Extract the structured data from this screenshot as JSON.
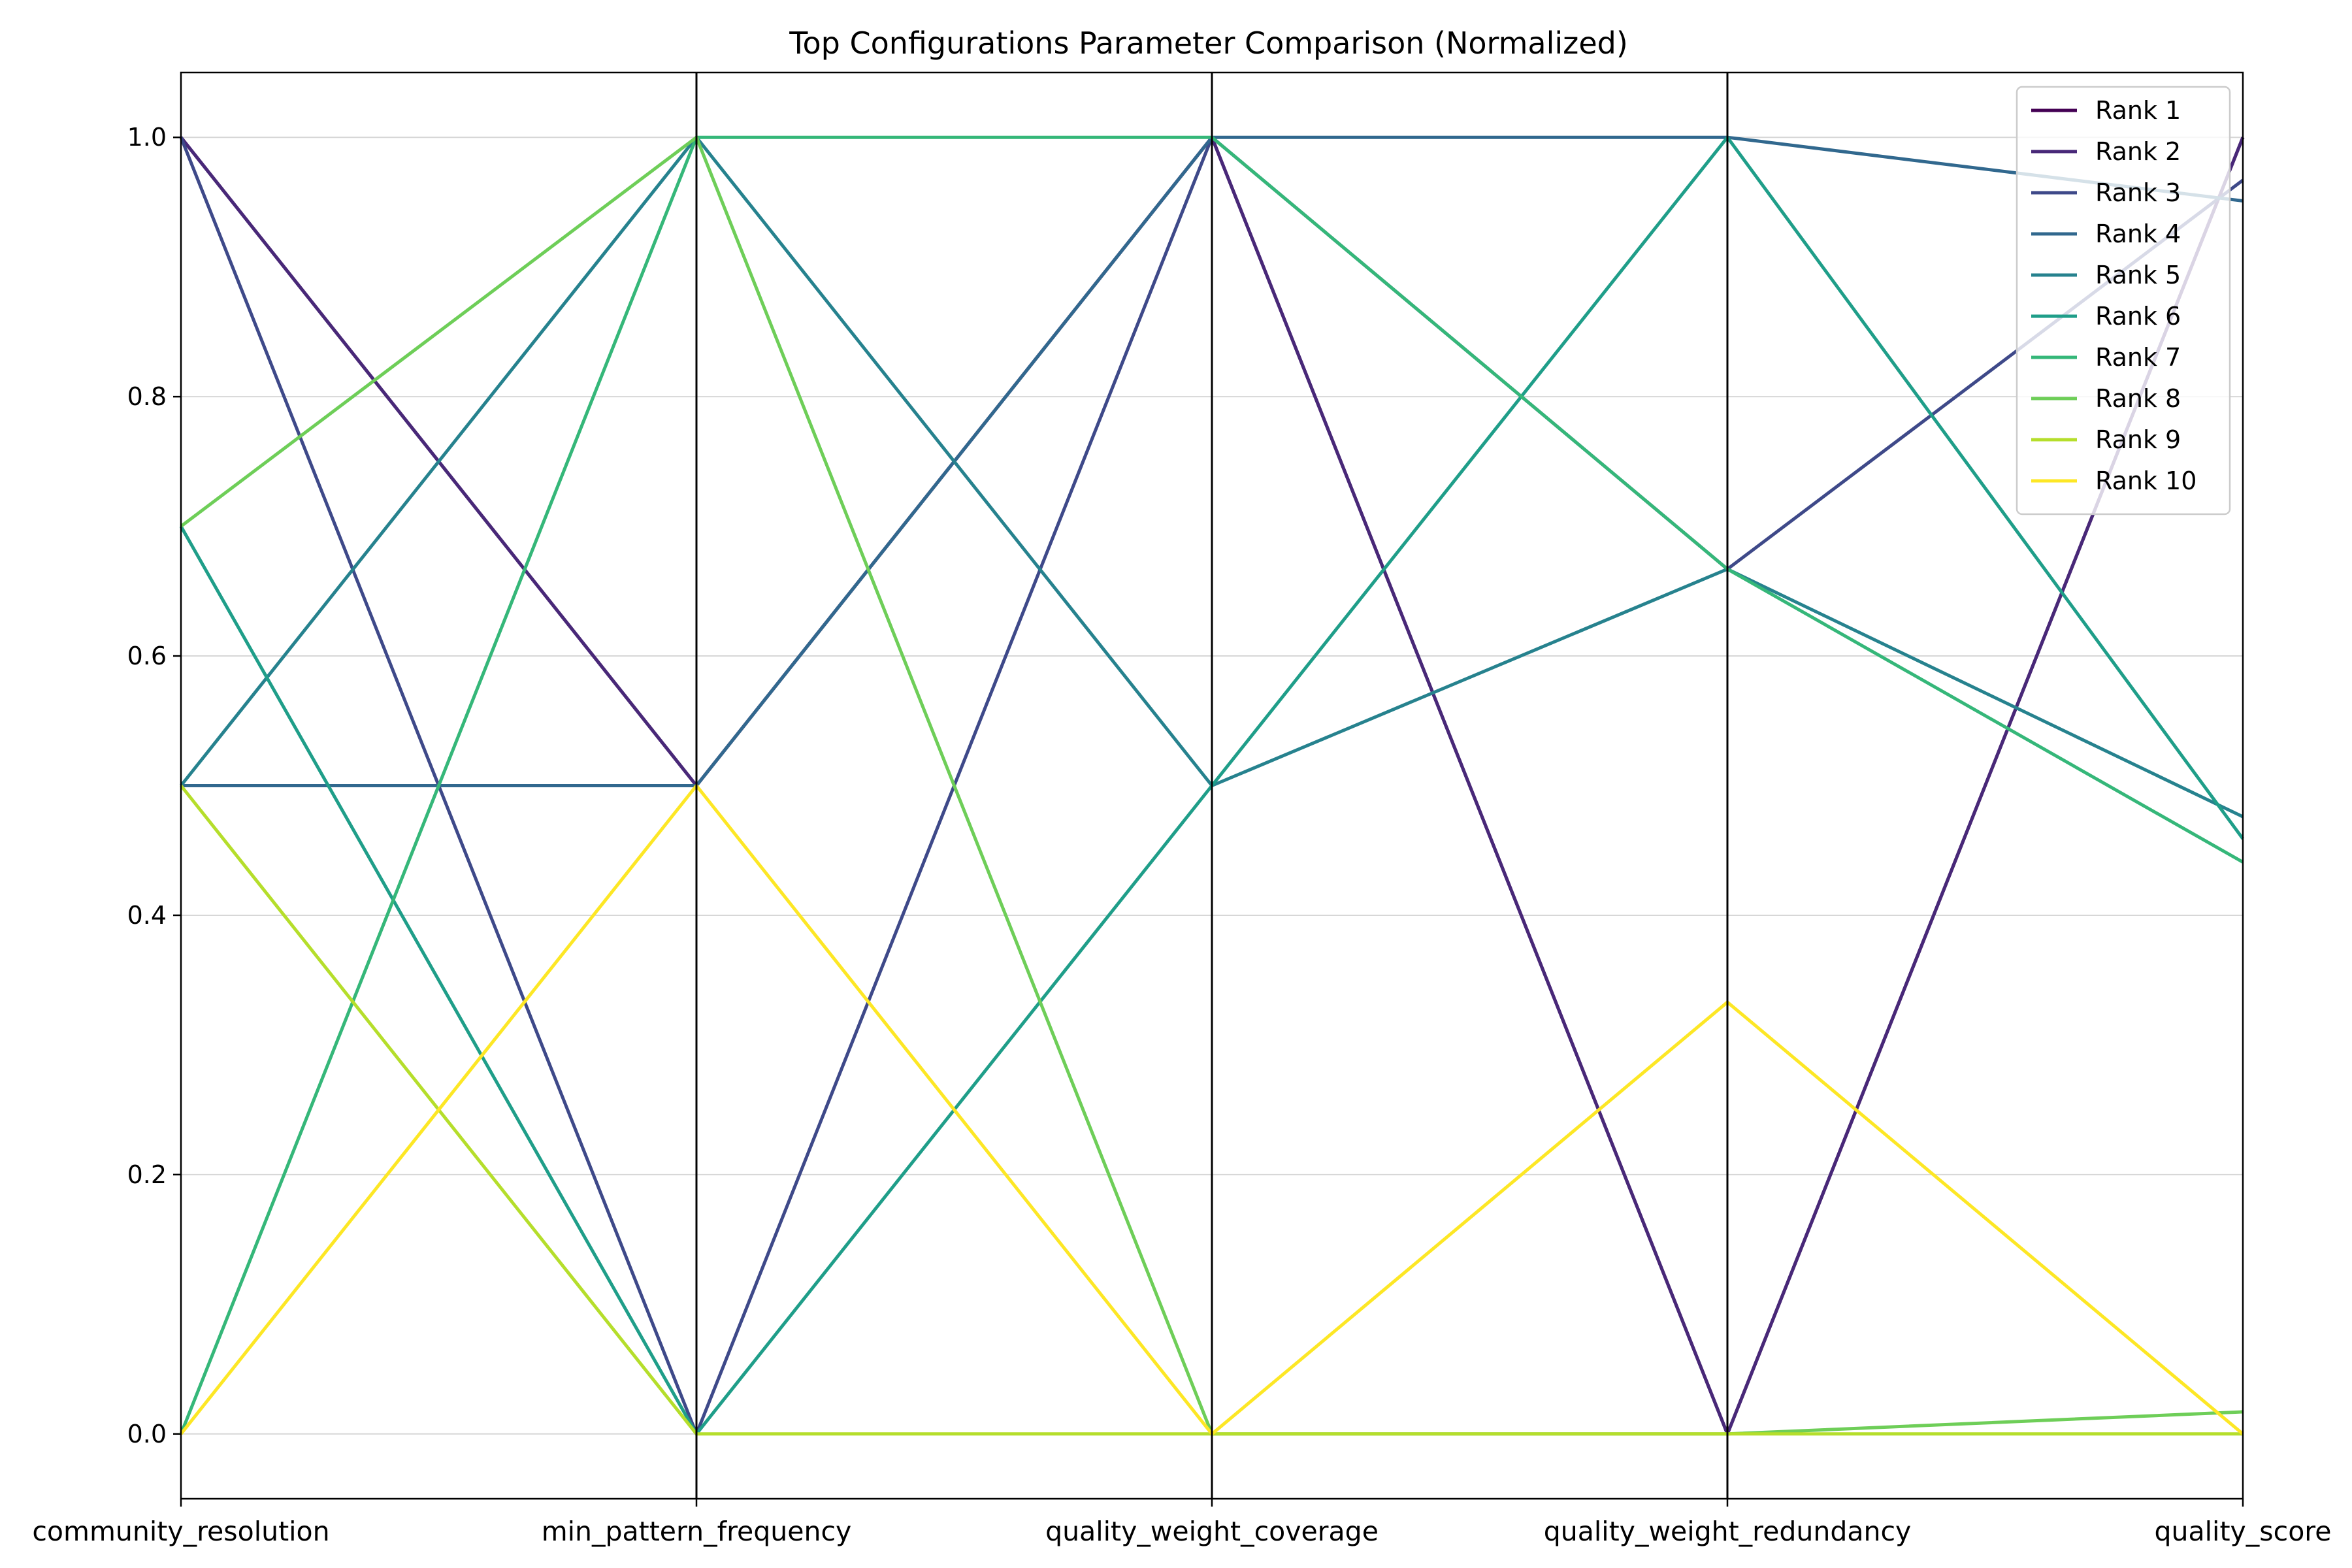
{
  "chart_data": {
    "type": "line",
    "subtype": "parallel-coordinates",
    "title": "Top Configurations Parameter Comparison (Normalized)",
    "xlabel": "",
    "ylabel": "",
    "categories": [
      "community_resolution",
      "min_pattern_frequency",
      "quality_weight_coverage",
      "quality_weight_redundancy",
      "quality_score"
    ],
    "ylim": [
      -0.05,
      1.05
    ],
    "yticks": [
      0.0,
      0.2,
      0.4,
      0.6,
      0.8,
      1.0
    ],
    "ytick_labels": [
      "0.0",
      "0.2",
      "0.4",
      "0.6",
      "0.8",
      "1.0"
    ],
    "grid": "horizontal",
    "legend_position": "top-right",
    "series": [
      {
        "name": "Rank 1",
        "color": "#440154",
        "values": [
          1.0,
          0.5,
          1.0,
          0.0,
          1.0
        ]
      },
      {
        "name": "Rank 2",
        "color": "#482878",
        "values": [
          1.0,
          0.5,
          1.0,
          0.0,
          1.0
        ]
      },
      {
        "name": "Rank 3",
        "color": "#3e4989",
        "values": [
          1.0,
          0.0,
          1.0,
          0.667,
          0.967
        ]
      },
      {
        "name": "Rank 4",
        "color": "#31688e",
        "values": [
          0.5,
          0.5,
          1.0,
          1.0,
          0.951
        ]
      },
      {
        "name": "Rank 5",
        "color": "#26828e",
        "values": [
          0.5,
          1.0,
          0.5,
          0.667,
          0.476
        ]
      },
      {
        "name": "Rank 6",
        "color": "#1f9e89",
        "values": [
          0.7,
          0.0,
          0.5,
          1.0,
          0.459
        ]
      },
      {
        "name": "Rank 7",
        "color": "#35b779",
        "values": [
          0.0,
          1.0,
          1.0,
          0.667,
          0.441
        ]
      },
      {
        "name": "Rank 8",
        "color": "#6ece58",
        "values": [
          0.7,
          1.0,
          0.0,
          0.0,
          0.017
        ]
      },
      {
        "name": "Rank 9",
        "color": "#b5de2b",
        "values": [
          0.5,
          0.0,
          0.0,
          0.0,
          0.0
        ]
      },
      {
        "name": "Rank 10",
        "color": "#fde725",
        "values": [
          0.0,
          0.5,
          0.0,
          0.333,
          0.0
        ]
      }
    ]
  }
}
